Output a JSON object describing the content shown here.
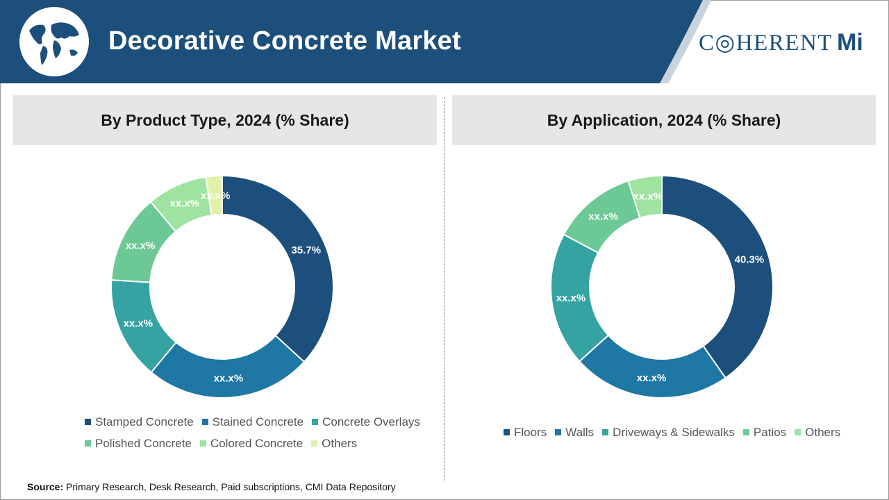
{
  "header": {
    "title": "Decorative Concrete Market",
    "logo_text": "C◎HERENT",
    "logo_mi": "Mi"
  },
  "colors": {
    "header_bg": "#1c4f7c",
    "panel_bg": "#e6e6e6"
  },
  "chart_data": [
    {
      "type": "pie",
      "title": "By Product Type, 2024 (% Share)",
      "categories": [
        "Stamped Concrete",
        "Stained Concrete",
        "Concrete Overlays",
        "Polished Concrete",
        "Colored Concrete",
        "Others"
      ],
      "values": [
        35.7,
        23.5,
        14.5,
        12.5,
        8.5,
        2.3
      ],
      "labels": [
        "35.7%",
        "xx.x%",
        "xx.x%",
        "xx.x%",
        "xx.x%",
        "xx.x%"
      ],
      "colors": [
        "#1c4f7c",
        "#1f77a4",
        "#36a3a3",
        "#6cc895",
        "#9fe3a0",
        "#dff3a8"
      ],
      "legend_position": "bottom",
      "start": "top",
      "direction": "clockwise"
    },
    {
      "type": "pie",
      "title": "By Application, 2024 (% Share)",
      "categories": [
        "Floors",
        "Walls",
        "Driveways & Sidewalks",
        "Patios",
        "Others"
      ],
      "values": [
        40.3,
        23.0,
        19.5,
        12.3,
        4.9
      ],
      "labels": [
        "40.3%",
        "xx.x%",
        "xx.x%",
        "xx.x%",
        "xx.x%"
      ],
      "colors": [
        "#1c4f7c",
        "#1f77a4",
        "#36a3a3",
        "#6cc895",
        "#9fe3a0"
      ],
      "legend_position": "bottom",
      "start": "top",
      "direction": "clockwise"
    }
  ],
  "source": {
    "label": "Source:",
    "text": "Primary Research, Desk Research, Paid subscriptions, CMI Data Repository"
  }
}
